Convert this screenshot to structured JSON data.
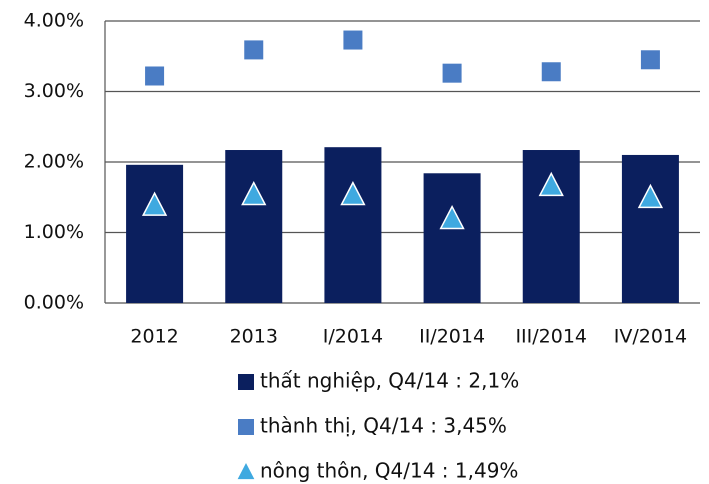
{
  "chart_data": {
    "type": "bar",
    "categories": [
      "2012",
      "2013",
      "I/2014",
      "II/2014",
      "III/2014",
      "IV/2014"
    ],
    "series": [
      {
        "name": "thất nghiệp, Q4/14 : 2,1%",
        "type": "bar",
        "marker": "square",
        "color": "#0b1f5e",
        "values": [
          1.96,
          2.17,
          2.21,
          1.84,
          2.17,
          2.1
        ]
      },
      {
        "name": "thành thị, Q4/14 : 3,45%",
        "type": "scatter",
        "marker": "square",
        "color": "#4a7cc4",
        "values": [
          3.22,
          3.59,
          3.73,
          3.26,
          3.28,
          3.45
        ]
      },
      {
        "name": "nông thôn, Q4/14 : 1,49%",
        "type": "scatter",
        "marker": "triangle",
        "color": "#3fa9e0",
        "values": [
          1.38,
          1.53,
          1.53,
          1.19,
          1.66,
          1.49
        ]
      }
    ],
    "ylim": [
      0,
      4
    ],
    "yticks": [
      {
        "value": 0,
        "label": "0.00%"
      },
      {
        "value": 1,
        "label": "1.00%"
      },
      {
        "value": 2,
        "label": "2.00%"
      },
      {
        "value": 3,
        "label": "3.00%"
      },
      {
        "value": 4,
        "label": "4.00%"
      }
    ],
    "grid": true
  }
}
